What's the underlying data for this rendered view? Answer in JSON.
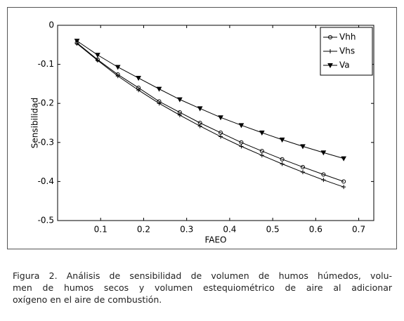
{
  "chart_data": {
    "type": "line",
    "x_label": "FAEO",
    "y_label": "Sensibilidad",
    "x": [
      0.045,
      0.093,
      0.14,
      0.188,
      0.236,
      0.284,
      0.331,
      0.379,
      0.427,
      0.475,
      0.522,
      0.57,
      0.618,
      0.665
    ],
    "series": [
      {
        "name": "Vhh",
        "color": "#000000",
        "marker": "circle",
        "values": [
          -0.045,
          -0.088,
          -0.126,
          -0.16,
          -0.195,
          -0.223,
          -0.25,
          -0.275,
          -0.3,
          -0.322,
          -0.343,
          -0.363,
          -0.382,
          -0.4
        ]
      },
      {
        "name": "Vhs",
        "color": "#000000",
        "marker": "plus",
        "values": [
          -0.047,
          -0.09,
          -0.13,
          -0.166,
          -0.2,
          -0.23,
          -0.258,
          -0.285,
          -0.31,
          -0.333,
          -0.355,
          -0.376,
          -0.396,
          -0.414
        ]
      },
      {
        "name": "Va",
        "color": "#000000",
        "marker": "triangle-down",
        "values": [
          -0.04,
          -0.076,
          -0.107,
          -0.135,
          -0.163,
          -0.19,
          -0.213,
          -0.236,
          -0.256,
          -0.275,
          -0.293,
          -0.31,
          -0.326,
          -0.341
        ]
      }
    ],
    "xlim": [
      0,
      0.735
    ],
    "xticks": [
      0.1,
      0.2,
      0.3,
      0.4,
      0.5,
      0.6,
      0.7
    ],
    "ylim": [
      -0.5,
      0
    ],
    "yticks": [
      0,
      -0.1,
      -0.2,
      -0.3,
      -0.4,
      -0.5
    ],
    "grid": false,
    "legend": "upper right"
  },
  "caption": [
    "Figura 2. Análisis de sensibilidad de volumen de humos húmedos, volu-",
    "men de humos secos y volumen estequiométrico de aire al adicionar",
    "oxígeno en el aire de combustión."
  ]
}
